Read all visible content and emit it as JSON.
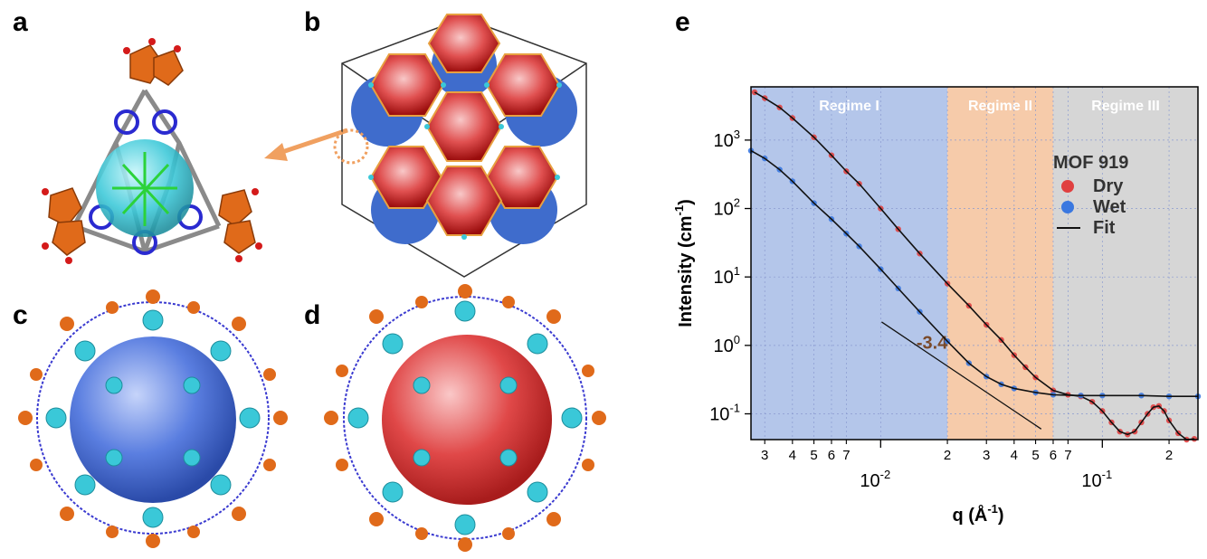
{
  "panels": {
    "a": "a",
    "b": "b",
    "c": "c",
    "d": "d",
    "e": "e"
  },
  "structure_colors": {
    "cluster": "#e06a1a",
    "cage_cyan": "#3ac8d8",
    "cage_blue": "#4a72d8",
    "cage_red": "#d42020",
    "linker": "#2a2ad0",
    "arrow": "#f0a060"
  },
  "chart_data": {
    "type": "line",
    "title": "",
    "xlabel": "q (Å⁻¹)",
    "xlabel_parts": {
      "base": "q (Å",
      "sup": "-1",
      "end": ")"
    },
    "ylabel": "Intensity (cm⁻¹)",
    "ylabel_parts": {
      "base": "Intensity (cm",
      "sup": "-1",
      "end": ")"
    },
    "xscale": "log",
    "yscale": "log",
    "xlim": [
      0.0026,
      0.27
    ],
    "ylim": [
      0.042,
      6000
    ],
    "x_major_ticks": [
      {
        "value": 0.01,
        "base": "10",
        "exp": "-2"
      },
      {
        "value": 0.1,
        "base": "10",
        "exp": "-1"
      }
    ],
    "x_minor_ticks": [
      {
        "value": 0.003,
        "label": "3"
      },
      {
        "value": 0.004,
        "label": "4"
      },
      {
        "value": 0.005,
        "label": "5"
      },
      {
        "value": 0.006,
        "label": "6"
      },
      {
        "value": 0.007,
        "label": "7"
      },
      {
        "value": 0.02,
        "label": "2"
      },
      {
        "value": 0.03,
        "label": "3"
      },
      {
        "value": 0.04,
        "label": "4"
      },
      {
        "value": 0.05,
        "label": "5"
      },
      {
        "value": 0.06,
        "label": "6"
      },
      {
        "value": 0.07,
        "label": "7"
      },
      {
        "value": 0.2,
        "label": "2"
      }
    ],
    "y_ticks": [
      {
        "value": 0.1,
        "base": "10",
        "exp": "-1"
      },
      {
        "value": 1,
        "base": "10",
        "exp": "0"
      },
      {
        "value": 10,
        "base": "10",
        "exp": "1"
      },
      {
        "value": 100,
        "base": "10",
        "exp": "2"
      },
      {
        "value": 1000,
        "base": "10",
        "exp": "3"
      }
    ],
    "regimes": [
      {
        "name": "Regime I",
        "x_range": [
          0.0026,
          0.02
        ],
        "color": "#b4c6ea"
      },
      {
        "name": "Regime II",
        "x_range": [
          0.02,
          0.06
        ],
        "color": "#f6cbaa"
      },
      {
        "name": "Regime III",
        "x_range": [
          0.06,
          0.27
        ],
        "color": "#d6d6d6"
      }
    ],
    "grid": true,
    "legend": {
      "title": "MOF 919",
      "placement": "top-right",
      "entries": [
        {
          "label": "Dry",
          "color": "#e04040",
          "marker": "circle"
        },
        {
          "label": "Wet",
          "color": "#3a78e0",
          "marker": "circle"
        },
        {
          "label": "Fit",
          "color": "#111111",
          "marker": "line"
        }
      ]
    },
    "annotation": {
      "text": "-3.4",
      "slope": -3.4,
      "guide_line": {
        "x": [
          0.0101,
          0.053
        ],
        "y": [
          2.2,
          0.06
        ]
      }
    },
    "series": [
      {
        "name": "Dry",
        "color": "#e04040",
        "x": [
          0.0027,
          0.003,
          0.0035,
          0.004,
          0.005,
          0.006,
          0.007,
          0.008,
          0.01,
          0.012,
          0.015,
          0.02,
          0.025,
          0.03,
          0.035,
          0.04,
          0.045,
          0.05,
          0.06,
          0.07,
          0.08,
          0.09,
          0.1,
          0.11,
          0.12,
          0.13,
          0.14,
          0.15,
          0.16,
          0.17,
          0.18,
          0.19,
          0.2,
          0.22,
          0.24,
          0.26
        ],
        "y": [
          5000,
          4100,
          3000,
          2100,
          1100,
          600,
          350,
          230,
          100,
          50,
          22,
          8,
          3.8,
          2.0,
          1.2,
          0.72,
          0.48,
          0.34,
          0.22,
          0.19,
          0.18,
          0.15,
          0.11,
          0.075,
          0.055,
          0.05,
          0.055,
          0.075,
          0.1,
          0.125,
          0.13,
          0.11,
          0.08,
          0.052,
          0.042,
          0.043
        ]
      },
      {
        "name": "Wet",
        "color": "#3a78e0",
        "x": [
          0.0026,
          0.003,
          0.0035,
          0.004,
          0.005,
          0.006,
          0.007,
          0.008,
          0.01,
          0.012,
          0.015,
          0.02,
          0.025,
          0.03,
          0.035,
          0.04,
          0.05,
          0.06,
          0.08,
          0.1,
          0.15,
          0.2,
          0.27
        ],
        "y": [
          700,
          540,
          370,
          250,
          120,
          70,
          43,
          28,
          13,
          6.8,
          3.1,
          1.15,
          0.55,
          0.35,
          0.27,
          0.235,
          0.205,
          0.19,
          0.185,
          0.185,
          0.185,
          0.18,
          0.18
        ]
      }
    ]
  }
}
